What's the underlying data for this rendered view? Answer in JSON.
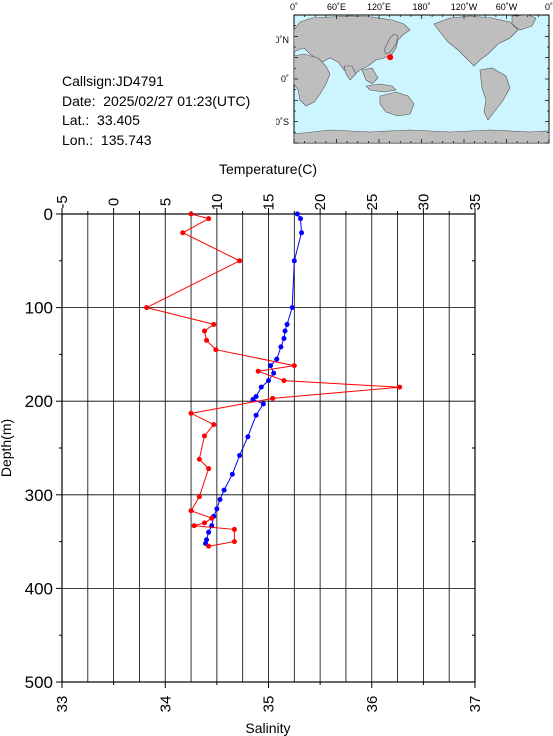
{
  "station": {
    "callsign": "Callsign:JD4791",
    "date": "Date:  2025/02/27 01:23(UTC)",
    "lat_label": "Lat.:",
    "lat_value": "33.405",
    "lon_label": "Lon.:",
    "lon_value": "135.743"
  },
  "map": {
    "top_ticks": [
      "0˚",
      "60˚E",
      "120˚E",
      "180˚",
      "120˚W",
      "60˚W",
      "0˚"
    ],
    "lat_ticks": [
      "60˚N",
      "0˚",
      "60˚S"
    ],
    "ocean_color": "#ccf5ff",
    "land_color": "#bebebe",
    "marker_color": "#ff0000",
    "marker": {
      "lon": 135.743,
      "lat": 33.405
    }
  },
  "chart_data": {
    "type": "line",
    "title": "",
    "xlabel_top": "Temperature(C)",
    "xlabel_bottom": "Salinity",
    "ylabel": "Depth(m)",
    "temperature_axis": {
      "min": -5,
      "max": 35,
      "ticks": [
        -5,
        0,
        5,
        10,
        15,
        20,
        25,
        30,
        35
      ]
    },
    "salinity_axis": {
      "min": 33,
      "max": 37,
      "ticks": [
        33,
        34,
        35,
        36,
        37
      ]
    },
    "depth_axis": {
      "min": 0,
      "max": 500,
      "ticks": [
        0,
        100,
        200,
        300,
        400,
        500
      ],
      "inverted": true
    },
    "grid": true,
    "series": [
      {
        "variable": "temperature",
        "color": "#0000ff",
        "points": [
          [
            17.8,
            0
          ],
          [
            18.1,
            5
          ],
          [
            18.2,
            20
          ],
          [
            17.5,
            50
          ],
          [
            17.3,
            100
          ],
          [
            16.8,
            118
          ],
          [
            16.6,
            125
          ],
          [
            16.5,
            133
          ],
          [
            16.2,
            142
          ],
          [
            15.8,
            155
          ],
          [
            15.2,
            162
          ],
          [
            15.5,
            170
          ],
          [
            15.0,
            178
          ],
          [
            14.3,
            185
          ],
          [
            13.8,
            195
          ],
          [
            13.5,
            198
          ],
          [
            14.5,
            203
          ],
          [
            13.8,
            215
          ],
          [
            13.0,
            238
          ],
          [
            12.2,
            258
          ],
          [
            11.5,
            278
          ],
          [
            10.7,
            295
          ],
          [
            10.3,
            305
          ],
          [
            10.0,
            315
          ],
          [
            9.7,
            323
          ],
          [
            9.5,
            333
          ],
          [
            9.2,
            340
          ],
          [
            9.0,
            348
          ],
          [
            8.9,
            352
          ]
        ]
      },
      {
        "variable": "salinity",
        "color": "#ff0000",
        "points": [
          [
            34.25,
            0
          ],
          [
            34.42,
            5
          ],
          [
            34.17,
            20
          ],
          [
            34.72,
            50
          ],
          [
            33.82,
            100
          ],
          [
            34.47,
            118
          ],
          [
            34.38,
            125
          ],
          [
            34.4,
            135
          ],
          [
            34.49,
            145
          ],
          [
            35.25,
            162
          ],
          [
            34.9,
            168
          ],
          [
            35.15,
            178
          ],
          [
            36.27,
            185
          ],
          [
            35.04,
            197
          ],
          [
            34.25,
            213
          ],
          [
            34.47,
            225
          ],
          [
            34.38,
            237
          ],
          [
            34.33,
            262
          ],
          [
            34.42,
            272
          ],
          [
            34.33,
            302
          ],
          [
            34.25,
            317
          ],
          [
            34.45,
            325
          ],
          [
            34.38,
            330
          ],
          [
            34.28,
            333
          ],
          [
            34.67,
            337
          ],
          [
            34.67,
            350
          ],
          [
            34.42,
            355
          ]
        ]
      }
    ]
  }
}
